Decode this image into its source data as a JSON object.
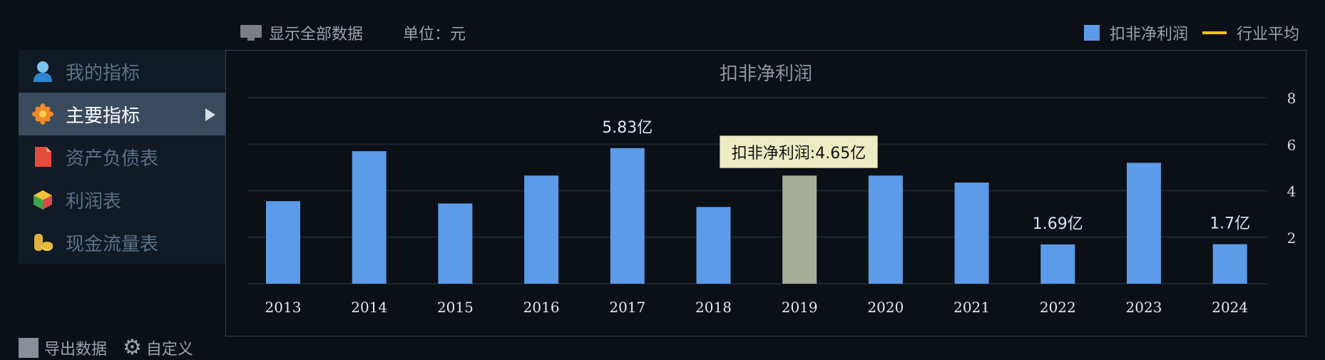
{
  "toolbar": {
    "show_all_label": "显示全部数据",
    "unit_label": "单位：元"
  },
  "legend": {
    "bar_label": "扣非净利润",
    "line_label": "行业平均",
    "bar_color": "#5b9be8",
    "line_color": "#f3c01a"
  },
  "sidebar": {
    "items": [
      {
        "label": "我的指标",
        "icon": "user-icon"
      },
      {
        "label": "主要指标",
        "icon": "star-icon",
        "active": true
      },
      {
        "label": "资产负债表",
        "icon": "document-icon"
      },
      {
        "label": "利润表",
        "icon": "cube-icon"
      },
      {
        "label": "现金流量表",
        "icon": "coins-icon"
      }
    ]
  },
  "tooltip": {
    "text": "扣非净利润:4.65亿"
  },
  "bottom": {
    "export_label": "导出数据",
    "custom_label": "自定义"
  },
  "chart_data": {
    "type": "bar",
    "title": "扣非净利润",
    "categories": [
      "2013",
      "2014",
      "2015",
      "2016",
      "2017",
      "2018",
      "2019",
      "2020",
      "2021",
      "2022",
      "2023",
      "2024"
    ],
    "series": [
      {
        "name": "扣非净利润",
        "values": [
          3.55,
          5.7,
          3.45,
          4.65,
          5.83,
          3.3,
          4.65,
          4.65,
          4.35,
          1.69,
          5.2,
          1.7
        ]
      }
    ],
    "highlight_category": "2019",
    "highlight_color": "#a8ad98",
    "data_labels": [
      {
        "category": "2017",
        "text": "5.83亿"
      },
      {
        "category": "2022",
        "text": "1.69亿"
      },
      {
        "category": "2024",
        "text": "1.7亿"
      }
    ],
    "y_ticks": [
      2,
      4,
      6,
      8
    ],
    "ylim": [
      0,
      8
    ],
    "y_axis_side": "right",
    "grid": true
  }
}
